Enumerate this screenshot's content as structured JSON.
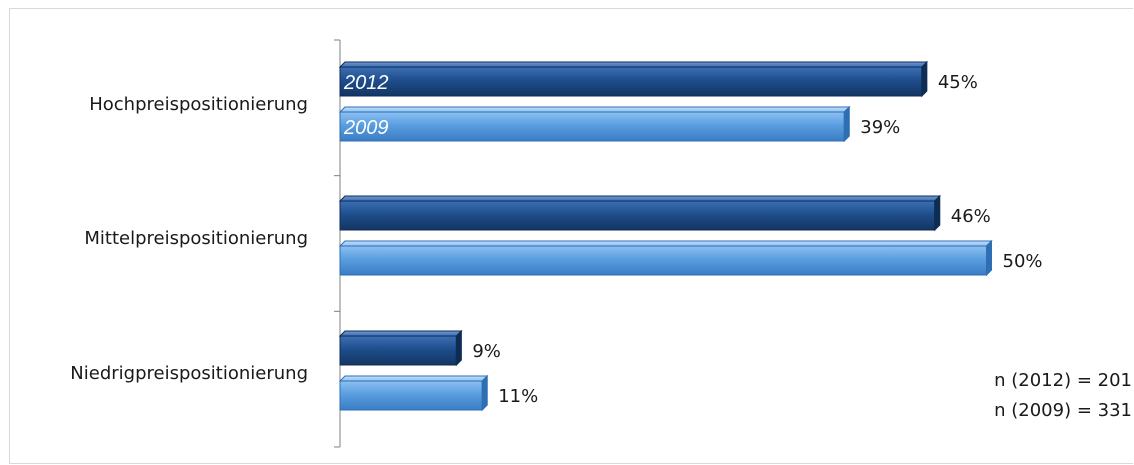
{
  "chart_data": {
    "type": "bar",
    "orientation": "horizontal",
    "categories": [
      "Hochpreispositionierung",
      "Mittelpreispositionierung",
      "Niedrigpreispositionierung"
    ],
    "series": [
      {
        "name": "2012",
        "values": [
          45,
          46,
          9
        ],
        "color": "#1f4e8c"
      },
      {
        "name": "2009",
        "values": [
          39,
          50,
          11
        ],
        "color": "#5a9ee0"
      }
    ],
    "value_format": "{v}%",
    "xlim": [
      0,
      55
    ],
    "grid": false,
    "legend": "inside-first-category-bars"
  },
  "notes": [
    "n (2012) = 201",
    "n (2009) = 331"
  ]
}
